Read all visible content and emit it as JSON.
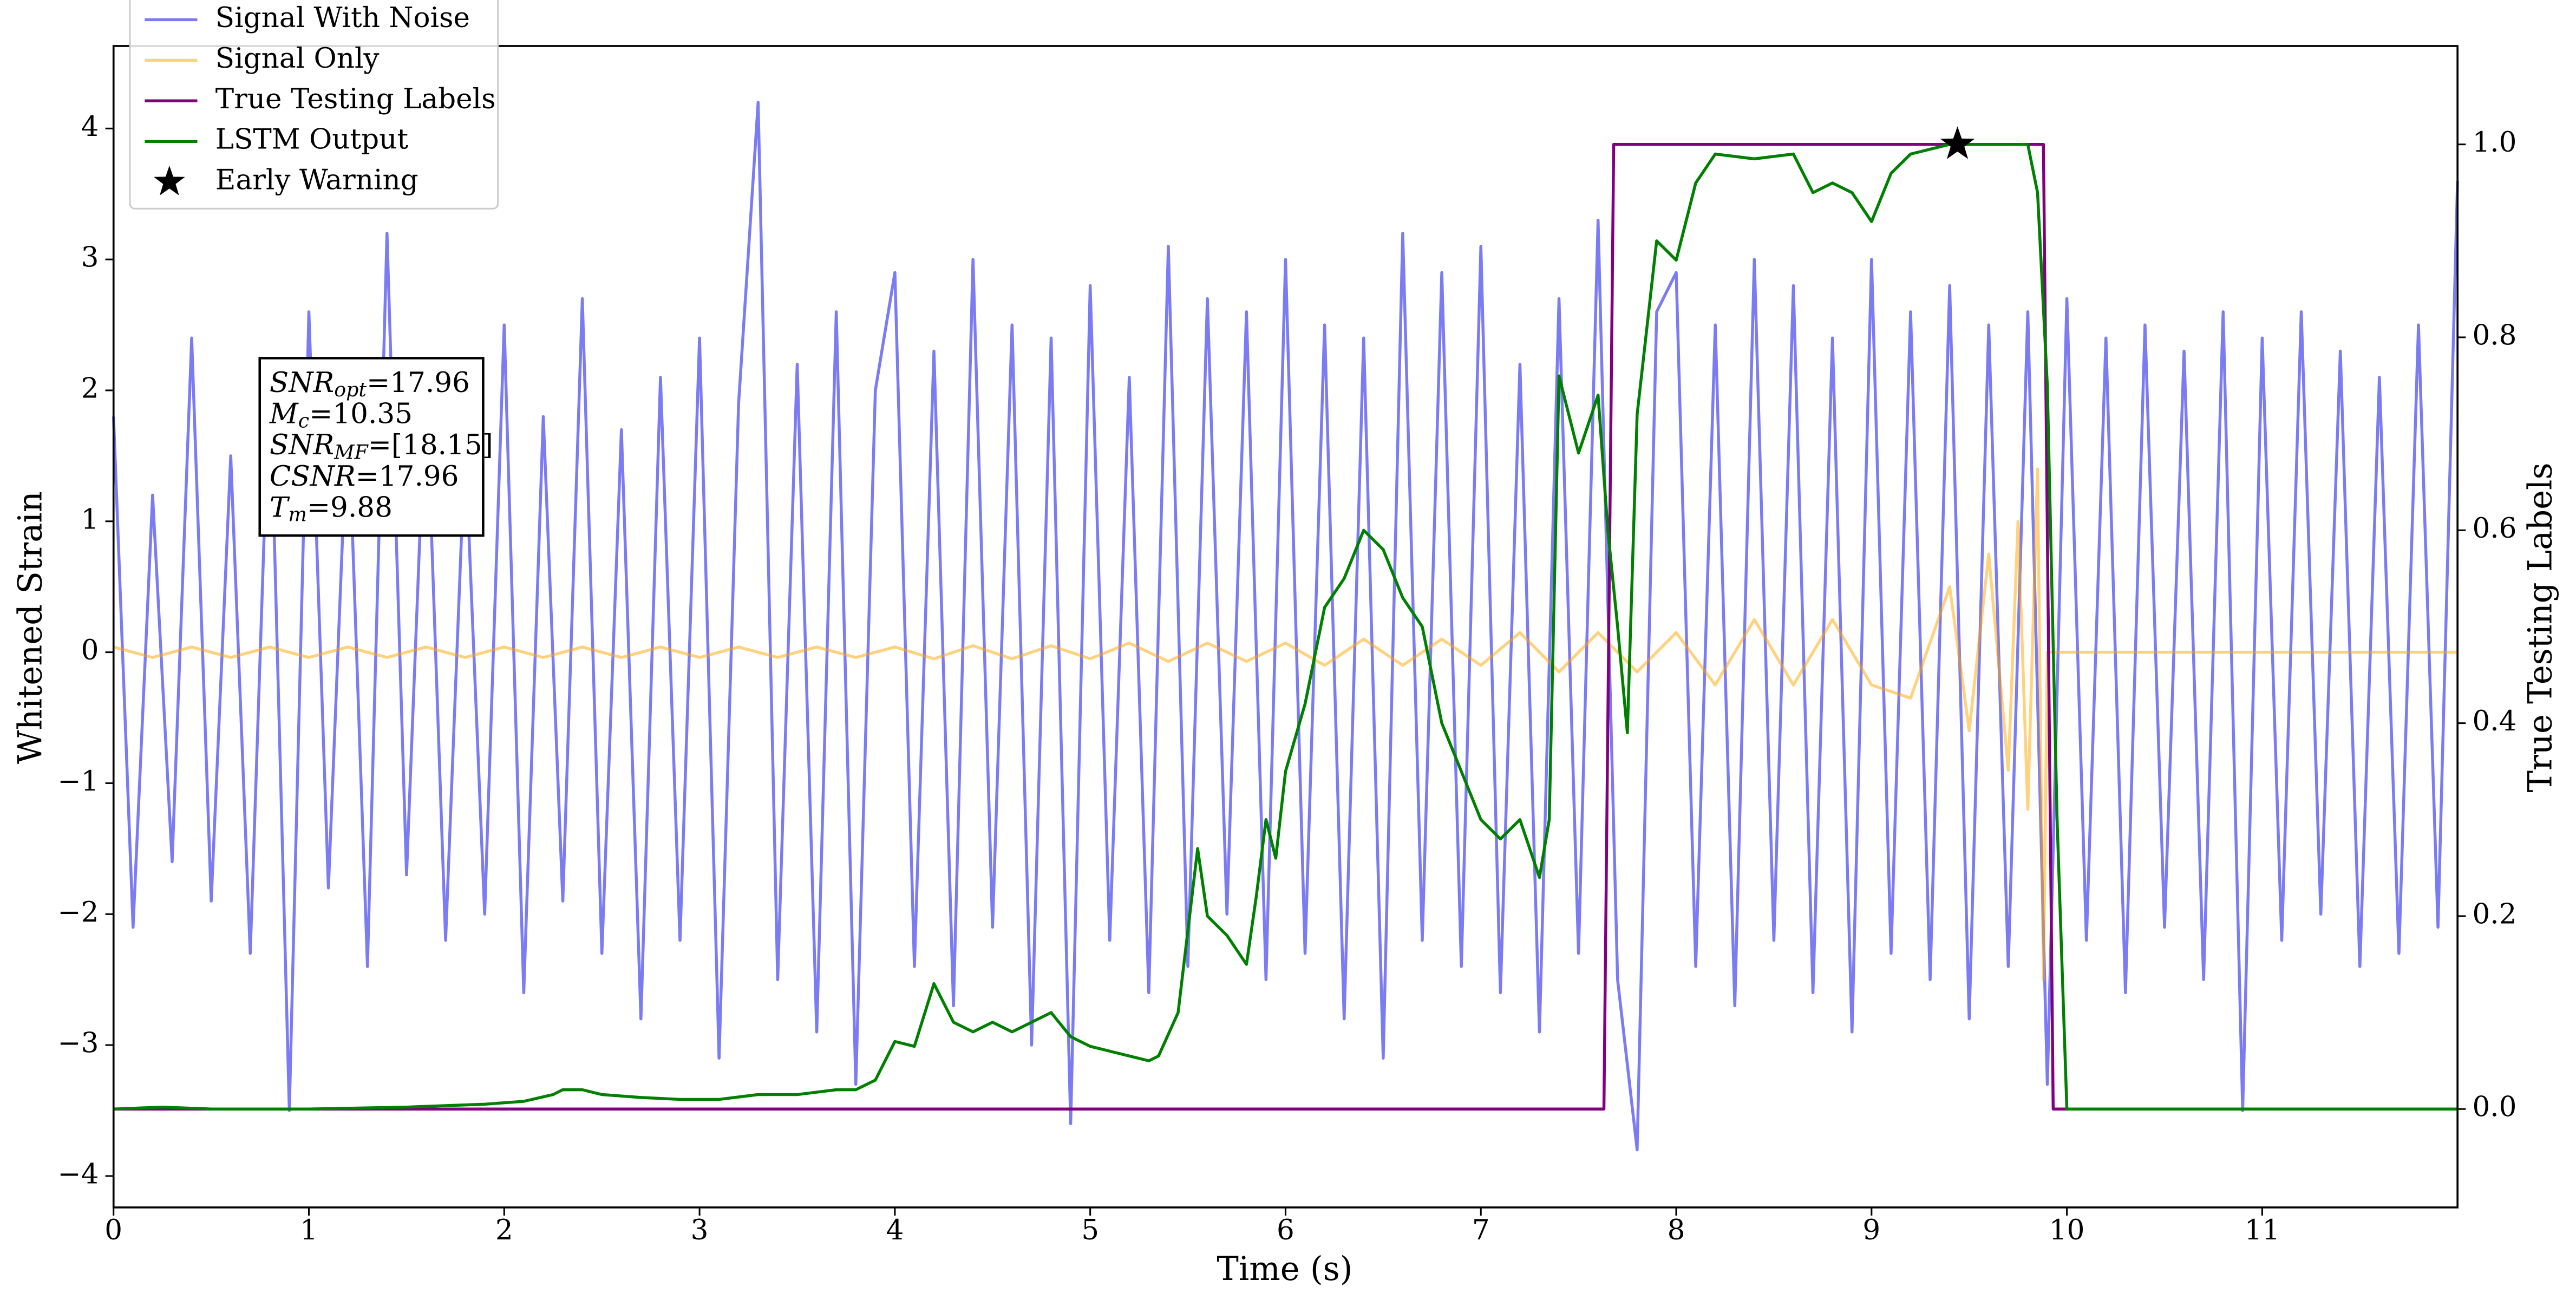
{
  "chart_data": {
    "type": "line",
    "xlabel": "Time (s)",
    "ylabel": "Whitened Strain",
    "y2label": "True Testing Labels",
    "xlim": [
      0,
      12.0
    ],
    "ylim": [
      -4.24,
      4.63
    ],
    "y2lim": [
      -0.102,
      1.102
    ],
    "xticks": [
      0,
      1,
      2,
      3,
      4,
      5,
      6,
      7,
      8,
      9,
      10,
      11
    ],
    "yticks": [
      {
        "value": -4,
        "label": "−4"
      },
      {
        "value": -3,
        "label": "−3"
      },
      {
        "value": -2,
        "label": "−2"
      },
      {
        "value": -1,
        "label": "−1"
      },
      0,
      1,
      2,
      3,
      4
    ],
    "y2ticks": [
      {
        "value": 0,
        "label": "0.0"
      },
      0.2,
      0.4,
      0.6,
      0.8,
      {
        "value": 1,
        "label": "1.0"
      }
    ],
    "legend": "upper left",
    "annotation": [
      {
        "base": "SNR",
        "sub": "opt",
        "text": "=17.96"
      },
      {
        "base": "M",
        "sub": "c",
        "text": "=10.35"
      },
      {
        "base": "SNR",
        "sub": "MF",
        "text": "=[18.15]"
      },
      {
        "base": "CSNR",
        "text": "=17.96"
      },
      {
        "base": "T",
        "sub": "m",
        "text": "=9.88"
      }
    ],
    "series": [
      {
        "name": "Signal With Noise",
        "color": "#7b7bf4",
        "alpha": 1,
        "x": [
          0,
          0.1,
          0.2,
          0.3,
          0.4,
          0.5,
          0.6,
          0.7,
          0.8,
          0.9,
          1,
          1.1,
          1.2,
          1.3,
          1.4,
          1.5,
          1.6,
          1.7,
          1.8,
          1.9,
          2,
          2.1,
          2.2,
          2.3,
          2.4,
          2.5,
          2.6,
          2.7,
          2.8,
          2.9,
          3,
          3.1,
          3.2,
          3.3,
          3.4,
          3.5,
          3.6,
          3.7,
          3.8,
          3.9,
          4,
          4.1,
          4.2,
          4.3,
          4.4,
          4.5,
          4.6,
          4.7,
          4.8,
          4.9,
          5,
          5.1,
          5.2,
          5.3,
          5.4,
          5.5,
          5.6,
          5.7,
          5.8,
          5.9,
          6,
          6.1,
          6.2,
          6.3,
          6.4,
          6.5,
          6.6,
          6.7,
          6.8,
          6.9,
          7,
          7.1,
          7.2,
          7.3,
          7.4,
          7.5,
          7.6,
          7.7,
          7.8,
          7.9,
          8,
          8.1,
          8.2,
          8.3,
          8.4,
          8.5,
          8.6,
          8.7,
          8.8,
          8.9,
          9,
          9.1,
          9.2,
          9.3,
          9.4,
          9.5,
          9.6,
          9.7,
          9.8,
          9.9,
          10,
          10.1,
          10.2,
          10.3,
          10.4,
          10.5,
          10.6,
          10.7,
          10.8,
          10.9,
          11,
          11.1,
          11.2,
          11.3,
          11.4,
          11.5,
          11.6,
          11.7,
          11.8,
          11.9,
          12
        ],
        "values": [
          1.8,
          -2.1,
          1.2,
          -1.6,
          2.4,
          -1.9,
          1.5,
          -2.3,
          2.2,
          -3.5,
          2.6,
          -1.8,
          1.9,
          -2.4,
          3.2,
          -1.7,
          2.1,
          -2.2,
          1.6,
          -2.0,
          2.5,
          -2.6,
          1.8,
          -1.9,
          2.7,
          -2.3,
          1.7,
          -2.8,
          2.1,
          -2.2,
          2.4,
          -3.1,
          1.9,
          4.2,
          -2.5,
          2.2,
          -2.9,
          2.6,
          -3.3,
          2.0,
          2.9,
          -2.4,
          2.3,
          -2.7,
          3.0,
          -2.1,
          2.5,
          -3.0,
          2.4,
          -3.6,
          2.8,
          -2.2,
          2.1,
          -2.6,
          3.1,
          -2.4,
          2.7,
          -2.0,
          2.6,
          -2.5,
          3.0,
          -2.3,
          2.5,
          -2.8,
          2.4,
          -3.1,
          3.2,
          -2.2,
          2.9,
          -2.4,
          3.1,
          -2.6,
          2.2,
          -2.9,
          2.7,
          -2.3,
          3.3,
          -2.5,
          -3.8,
          2.6,
          2.9,
          -2.4,
          2.5,
          -2.7,
          3.0,
          -2.2,
          2.8,
          -2.6,
          2.4,
          -2.9,
          3.0,
          -2.3,
          2.6,
          -2.5,
          2.8,
          -2.8,
          2.5,
          -2.4,
          2.6,
          -3.3,
          2.7,
          -2.2,
          2.4,
          -2.6,
          2.5,
          -2.1,
          2.3,
          -2.5,
          2.6,
          -3.5,
          2.4,
          -2.2,
          2.6,
          -2.0,
          2.3,
          -2.4,
          2.1,
          -2.3,
          2.5,
          -2.1,
          3.6
        ]
      },
      {
        "name": "Signal Only",
        "color": "#ffa500",
        "alpha": 0.5,
        "x": [
          0,
          0.2,
          0.4,
          0.6,
          0.8,
          1,
          1.2,
          1.4,
          1.6,
          1.8,
          2,
          2.2,
          2.4,
          2.6,
          2.8,
          3,
          3.2,
          3.4,
          3.6,
          3.8,
          4,
          4.2,
          4.4,
          4.6,
          4.8,
          5,
          5.2,
          5.4,
          5.6,
          5.8,
          6,
          6.2,
          6.4,
          6.6,
          6.8,
          7,
          7.2,
          7.4,
          7.6,
          7.8,
          8,
          8.2,
          8.4,
          8.6,
          8.8,
          9,
          9.2,
          9.4,
          9.5,
          9.6,
          9.7,
          9.75,
          9.8,
          9.85,
          9.88,
          9.9,
          12
        ],
        "values": [
          0.04,
          -0.04,
          0.04,
          -0.04,
          0.04,
          -0.04,
          0.04,
          -0.04,
          0.04,
          -0.04,
          0.04,
          -0.04,
          0.04,
          -0.04,
          0.04,
          -0.04,
          0.04,
          -0.04,
          0.04,
          -0.04,
          0.04,
          -0.05,
          0.05,
          -0.05,
          0.05,
          -0.05,
          0.07,
          -0.07,
          0.07,
          -0.07,
          0.07,
          -0.1,
          0.1,
          -0.1,
          0.1,
          -0.1,
          0.15,
          -0.15,
          0.15,
          -0.15,
          0.15,
          -0.25,
          0.25,
          -0.25,
          0.25,
          -0.25,
          -0.35,
          0.5,
          -0.6,
          0.75,
          -0.9,
          1.0,
          -1.2,
          1.4,
          -2.5,
          0,
          0
        ]
      },
      {
        "name": "True Testing Labels",
        "color": "#800080",
        "alpha": 1,
        "axis": "y2",
        "x": [
          0,
          7.63,
          7.68,
          9.88,
          9.93,
          12
        ],
        "values": [
          0,
          0,
          1,
          1,
          0,
          0
        ]
      },
      {
        "name": "LSTM Output",
        "color": "#008000",
        "alpha": 1,
        "axis": "y2",
        "x": [
          0,
          0.25,
          0.5,
          1,
          1.5,
          1.9,
          2.1,
          2.25,
          2.3,
          2.4,
          2.5,
          2.7,
          2.9,
          3.1,
          3.3,
          3.5,
          3.7,
          3.8,
          3.9,
          4.0,
          4.1,
          4.2,
          4.3,
          4.4,
          4.5,
          4.6,
          4.7,
          4.8,
          4.9,
          5.0,
          5.1,
          5.2,
          5.3,
          5.35,
          5.45,
          5.55,
          5.6,
          5.7,
          5.8,
          5.85,
          5.9,
          5.95,
          6.0,
          6.1,
          6.2,
          6.3,
          6.4,
          6.5,
          6.6,
          6.7,
          6.8,
          6.9,
          7.0,
          7.1,
          7.2,
          7.3,
          7.35,
          7.4,
          7.5,
          7.6,
          7.65,
          7.7,
          7.75,
          7.8,
          7.9,
          8.0,
          8.1,
          8.2,
          8.4,
          8.6,
          8.7,
          8.8,
          8.9,
          9.0,
          9.1,
          9.2,
          9.4,
          9.6,
          9.8,
          9.85,
          9.9,
          9.95,
          10.0,
          10.2,
          12
        ],
        "values": [
          0,
          0.002,
          0,
          0,
          0.002,
          0.005,
          0.008,
          0.015,
          0.02,
          0.02,
          0.015,
          0.012,
          0.01,
          0.01,
          0.015,
          0.015,
          0.02,
          0.02,
          0.03,
          0.07,
          0.065,
          0.13,
          0.09,
          0.08,
          0.09,
          0.08,
          0.09,
          0.1,
          0.075,
          0.065,
          0.06,
          0.055,
          0.05,
          0.055,
          0.1,
          0.27,
          0.2,
          0.18,
          0.15,
          0.22,
          0.3,
          0.26,
          0.35,
          0.42,
          0.52,
          0.55,
          0.6,
          0.58,
          0.53,
          0.5,
          0.4,
          0.35,
          0.3,
          0.28,
          0.3,
          0.24,
          0.3,
          0.76,
          0.68,
          0.74,
          0.6,
          0.5,
          0.39,
          0.72,
          0.9,
          0.88,
          0.96,
          0.99,
          0.985,
          0.99,
          0.95,
          0.96,
          0.95,
          0.92,
          0.97,
          0.99,
          1.0,
          1.0,
          1.0,
          0.95,
          0.75,
          0.3,
          0.0,
          0,
          0
        ]
      },
      {
        "name": "Early Warning",
        "color": "#000000",
        "alpha": 1,
        "axis": "y2",
        "marker": "star",
        "x": [
          9.44
        ],
        "values": [
          1.0
        ]
      }
    ]
  }
}
